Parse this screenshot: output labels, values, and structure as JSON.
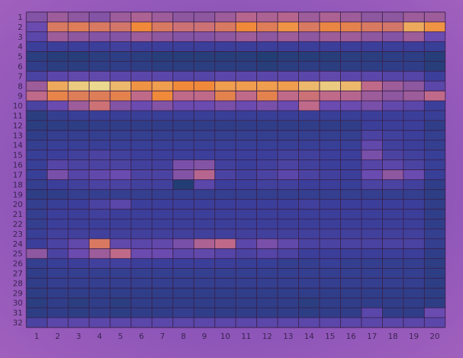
{
  "chart_data": {
    "type": "heatmap",
    "title": "",
    "xlabel": "",
    "ylabel": "",
    "x_ticks": [
      "1",
      "2",
      "3",
      "4",
      "5",
      "6",
      "7",
      "8",
      "9",
      "10",
      "11",
      "12",
      "13",
      "14",
      "15",
      "16",
      "17",
      "18",
      "19",
      "20"
    ],
    "y_ticks": [
      "1",
      "2",
      "3",
      "4",
      "5",
      "6",
      "7",
      "8",
      "9",
      "10",
      "11",
      "12",
      "13",
      "14",
      "15",
      "16",
      "17",
      "18",
      "19",
      "20",
      "21",
      "22",
      "23",
      "24",
      "25",
      "26",
      "27",
      "28",
      "29",
      "30",
      "31",
      "32"
    ],
    "grid": true,
    "colormap": {
      "low": "#123d5a",
      "mid_low": "#3b3f9a",
      "mid": "#6a4bb0",
      "mid_high": "#c06a8a",
      "high": "#f08a3a",
      "peak": "#e8f0a8"
    },
    "values": [
      [
        0.5,
        0.55,
        0.52,
        0.5,
        0.55,
        0.58,
        0.55,
        0.52,
        0.52,
        0.55,
        0.6,
        0.58,
        0.6,
        0.55,
        0.58,
        0.55,
        0.52,
        0.52,
        0.55,
        0.55
      ],
      [
        0.45,
        0.7,
        0.72,
        0.7,
        0.68,
        0.78,
        0.7,
        0.66,
        0.66,
        0.7,
        0.78,
        0.72,
        0.8,
        0.7,
        0.76,
        0.74,
        0.7,
        0.68,
        0.85,
        0.8
      ],
      [
        0.4,
        0.55,
        0.52,
        0.5,
        0.5,
        0.55,
        0.52,
        0.5,
        0.5,
        0.52,
        0.55,
        0.52,
        0.55,
        0.52,
        0.55,
        0.55,
        0.52,
        0.5,
        0.55,
        0.45
      ],
      [
        0.3,
        0.3,
        0.3,
        0.3,
        0.32,
        0.3,
        0.3,
        0.3,
        0.3,
        0.3,
        0.3,
        0.3,
        0.3,
        0.3,
        0.3,
        0.3,
        0.3,
        0.3,
        0.3,
        0.28
      ],
      [
        0.18,
        0.15,
        0.15,
        0.18,
        0.2,
        0.18,
        0.15,
        0.15,
        0.15,
        0.15,
        0.15,
        0.12,
        0.15,
        0.15,
        0.15,
        0.18,
        0.18,
        0.2,
        0.2,
        0.15
      ],
      [
        0.22,
        0.18,
        0.18,
        0.2,
        0.22,
        0.2,
        0.18,
        0.18,
        0.18,
        0.18,
        0.18,
        0.15,
        0.18,
        0.2,
        0.18,
        0.2,
        0.2,
        0.22,
        0.22,
        0.15
      ],
      [
        0.35,
        0.4,
        0.42,
        0.42,
        0.4,
        0.4,
        0.4,
        0.38,
        0.38,
        0.4,
        0.4,
        0.4,
        0.4,
        0.4,
        0.42,
        0.4,
        0.4,
        0.38,
        0.38,
        0.3
      ],
      [
        0.55,
        0.85,
        0.92,
        0.95,
        0.88,
        0.8,
        0.82,
        0.78,
        0.78,
        0.82,
        0.82,
        0.82,
        0.82,
        0.88,
        0.92,
        0.88,
        0.62,
        0.55,
        0.52,
        0.4
      ],
      [
        0.62,
        0.75,
        0.72,
        0.72,
        0.74,
        0.62,
        0.78,
        0.62,
        0.62,
        0.74,
        0.62,
        0.74,
        0.62,
        0.66,
        0.62,
        0.6,
        0.55,
        0.52,
        0.55,
        0.62
      ],
      [
        0.35,
        0.45,
        0.55,
        0.66,
        0.5,
        0.45,
        0.5,
        0.45,
        0.45,
        0.48,
        0.45,
        0.48,
        0.45,
        0.62,
        0.45,
        0.45,
        0.48,
        0.42,
        0.4,
        0.3
      ],
      [
        0.18,
        0.25,
        0.28,
        0.28,
        0.28,
        0.28,
        0.28,
        0.28,
        0.28,
        0.28,
        0.28,
        0.28,
        0.28,
        0.28,
        0.28,
        0.28,
        0.3,
        0.3,
        0.3,
        0.28
      ],
      [
        0.18,
        0.2,
        0.2,
        0.22,
        0.22,
        0.22,
        0.22,
        0.22,
        0.22,
        0.22,
        0.22,
        0.22,
        0.22,
        0.22,
        0.22,
        0.22,
        0.3,
        0.3,
        0.3,
        0.22
      ],
      [
        0.22,
        0.25,
        0.25,
        0.25,
        0.25,
        0.25,
        0.25,
        0.25,
        0.25,
        0.25,
        0.25,
        0.25,
        0.25,
        0.25,
        0.25,
        0.25,
        0.35,
        0.32,
        0.3,
        0.25
      ],
      [
        0.25,
        0.28,
        0.28,
        0.28,
        0.28,
        0.28,
        0.28,
        0.28,
        0.28,
        0.28,
        0.28,
        0.28,
        0.28,
        0.28,
        0.28,
        0.28,
        0.42,
        0.32,
        0.3,
        0.25
      ],
      [
        0.28,
        0.3,
        0.32,
        0.35,
        0.32,
        0.3,
        0.3,
        0.3,
        0.3,
        0.3,
        0.3,
        0.3,
        0.32,
        0.32,
        0.3,
        0.3,
        0.48,
        0.35,
        0.32,
        0.28
      ],
      [
        0.28,
        0.38,
        0.35,
        0.35,
        0.35,
        0.32,
        0.32,
        0.48,
        0.5,
        0.32,
        0.3,
        0.32,
        0.35,
        0.32,
        0.3,
        0.3,
        0.38,
        0.4,
        0.35,
        0.28
      ],
      [
        0.28,
        0.48,
        0.38,
        0.42,
        0.45,
        0.35,
        0.35,
        0.5,
        0.6,
        0.35,
        0.32,
        0.35,
        0.4,
        0.35,
        0.32,
        0.3,
        0.45,
        0.52,
        0.45,
        0.28
      ],
      [
        0.25,
        0.3,
        0.32,
        0.35,
        0.35,
        0.32,
        0.32,
        0.12,
        0.4,
        0.3,
        0.3,
        0.32,
        0.32,
        0.3,
        0.3,
        0.28,
        0.35,
        0.35,
        0.32,
        0.22
      ],
      [
        0.2,
        0.22,
        0.25,
        0.25,
        0.25,
        0.25,
        0.25,
        0.25,
        0.25,
        0.25,
        0.25,
        0.25,
        0.25,
        0.25,
        0.25,
        0.25,
        0.25,
        0.25,
        0.25,
        0.2
      ],
      [
        0.25,
        0.28,
        0.3,
        0.35,
        0.4,
        0.3,
        0.3,
        0.3,
        0.3,
        0.3,
        0.3,
        0.3,
        0.3,
        0.32,
        0.3,
        0.3,
        0.3,
        0.3,
        0.3,
        0.22
      ],
      [
        0.25,
        0.3,
        0.3,
        0.32,
        0.3,
        0.3,
        0.3,
        0.3,
        0.3,
        0.3,
        0.3,
        0.3,
        0.3,
        0.3,
        0.3,
        0.3,
        0.3,
        0.3,
        0.3,
        0.22
      ],
      [
        0.25,
        0.3,
        0.3,
        0.3,
        0.3,
        0.3,
        0.3,
        0.3,
        0.3,
        0.3,
        0.3,
        0.3,
        0.3,
        0.3,
        0.3,
        0.3,
        0.3,
        0.3,
        0.3,
        0.22
      ],
      [
        0.28,
        0.32,
        0.32,
        0.32,
        0.32,
        0.32,
        0.32,
        0.32,
        0.32,
        0.32,
        0.32,
        0.32,
        0.32,
        0.32,
        0.32,
        0.32,
        0.32,
        0.32,
        0.32,
        0.25
      ],
      [
        0.3,
        0.35,
        0.42,
        0.7,
        0.42,
        0.4,
        0.42,
        0.48,
        0.58,
        0.62,
        0.4,
        0.48,
        0.42,
        0.35,
        0.35,
        0.35,
        0.35,
        0.35,
        0.35,
        0.25
      ],
      [
        0.52,
        0.35,
        0.45,
        0.55,
        0.62,
        0.45,
        0.45,
        0.4,
        0.42,
        0.38,
        0.35,
        0.38,
        0.35,
        0.3,
        0.3,
        0.3,
        0.3,
        0.3,
        0.3,
        0.22
      ],
      [
        0.25,
        0.28,
        0.3,
        0.32,
        0.32,
        0.3,
        0.3,
        0.3,
        0.3,
        0.3,
        0.28,
        0.28,
        0.25,
        0.25,
        0.28,
        0.25,
        0.25,
        0.25,
        0.25,
        0.2
      ],
      [
        0.22,
        0.25,
        0.25,
        0.25,
        0.25,
        0.25,
        0.25,
        0.25,
        0.25,
        0.25,
        0.25,
        0.25,
        0.25,
        0.25,
        0.25,
        0.25,
        0.25,
        0.25,
        0.25,
        0.2
      ],
      [
        0.22,
        0.25,
        0.25,
        0.25,
        0.25,
        0.25,
        0.25,
        0.25,
        0.25,
        0.25,
        0.25,
        0.25,
        0.25,
        0.25,
        0.25,
        0.25,
        0.25,
        0.25,
        0.25,
        0.2
      ],
      [
        0.2,
        0.22,
        0.22,
        0.22,
        0.22,
        0.22,
        0.22,
        0.22,
        0.22,
        0.22,
        0.22,
        0.22,
        0.22,
        0.22,
        0.22,
        0.22,
        0.22,
        0.22,
        0.22,
        0.2
      ],
      [
        0.18,
        0.22,
        0.18,
        0.22,
        0.18,
        0.22,
        0.22,
        0.22,
        0.22,
        0.22,
        0.22,
        0.22,
        0.22,
        0.18,
        0.22,
        0.22,
        0.22,
        0.22,
        0.22,
        0.2
      ],
      [
        0.2,
        0.22,
        0.2,
        0.22,
        0.2,
        0.22,
        0.22,
        0.25,
        0.22,
        0.22,
        0.22,
        0.22,
        0.22,
        0.2,
        0.22,
        0.22,
        0.4,
        0.22,
        0.22,
        0.45
      ],
      [
        0.35,
        0.4,
        0.4,
        0.4,
        0.4,
        0.4,
        0.4,
        0.4,
        0.4,
        0.4,
        0.4,
        0.4,
        0.4,
        0.4,
        0.4,
        0.4,
        0.4,
        0.4,
        0.4,
        0.4
      ]
    ]
  }
}
